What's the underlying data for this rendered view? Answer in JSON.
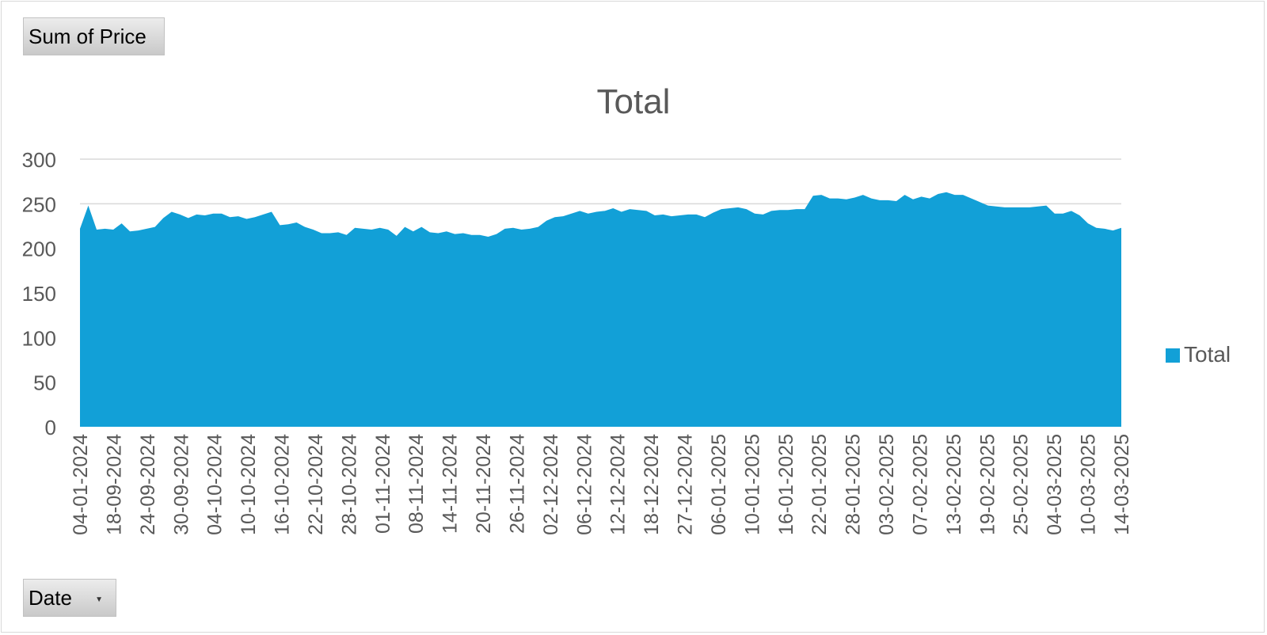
{
  "field_buttons": {
    "value_field": "Sum of Price",
    "axis_field": "Date"
  },
  "icons": {
    "dropdown": "dropdown-arrow-icon"
  },
  "colors": {
    "area": "#12a0d7",
    "gridline": "#d9d9d9",
    "text": "#595959"
  },
  "chart_data": {
    "type": "area",
    "title": "Total",
    "xlabel": "",
    "ylabel": "",
    "ylim": [
      0,
      300
    ],
    "yticks": [
      0,
      50,
      100,
      150,
      200,
      250,
      300
    ],
    "grid": true,
    "legend_position": "right",
    "x_tick_labels": [
      "04-01-2024",
      "18-09-2024",
      "24-09-2024",
      "30-09-2024",
      "04-10-2024",
      "10-10-2024",
      "16-10-2024",
      "22-10-2024",
      "28-10-2024",
      "01-11-2024",
      "08-11-2024",
      "14-11-2024",
      "20-11-2024",
      "26-11-2024",
      "02-12-2024",
      "06-12-2024",
      "12-12-2024",
      "18-12-2024",
      "27-12-2024",
      "06-01-2025",
      "10-01-2025",
      "16-01-2025",
      "22-01-2025",
      "28-01-2025",
      "03-02-2025",
      "07-02-2025",
      "13-02-2025",
      "19-02-2025",
      "25-02-2025",
      "04-03-2025",
      "10-03-2025",
      "14-03-2025"
    ],
    "series": [
      {
        "name": "Total",
        "values": [
          222,
          248,
          221,
          222,
          221,
          228,
          219,
          220,
          222,
          224,
          234,
          241,
          238,
          234,
          238,
          237,
          239,
          239,
          235,
          236,
          233,
          235,
          238,
          241,
          226,
          227,
          229,
          224,
          221,
          217,
          217,
          218,
          215,
          223,
          222,
          221,
          223,
          221,
          214,
          224,
          219,
          224,
          218,
          217,
          219,
          216,
          217,
          215,
          215,
          213,
          216,
          222,
          223,
          221,
          222,
          224,
          231,
          235,
          236,
          239,
          242,
          239,
          241,
          242,
          245,
          241,
          244,
          243,
          242,
          237,
          238,
          236,
          237,
          238,
          238,
          235,
          240,
          244,
          245,
          246,
          244,
          239,
          238,
          242,
          243,
          243,
          244,
          244,
          259,
          260,
          256,
          256,
          255,
          257,
          260,
          256,
          254,
          254,
          253,
          260,
          255,
          258,
          256,
          261,
          263,
          260,
          260,
          256,
          252,
          248,
          247,
          246,
          246,
          246,
          246,
          247,
          248,
          239,
          239,
          242,
          237,
          228,
          223,
          222,
          220,
          223
        ]
      }
    ]
  }
}
